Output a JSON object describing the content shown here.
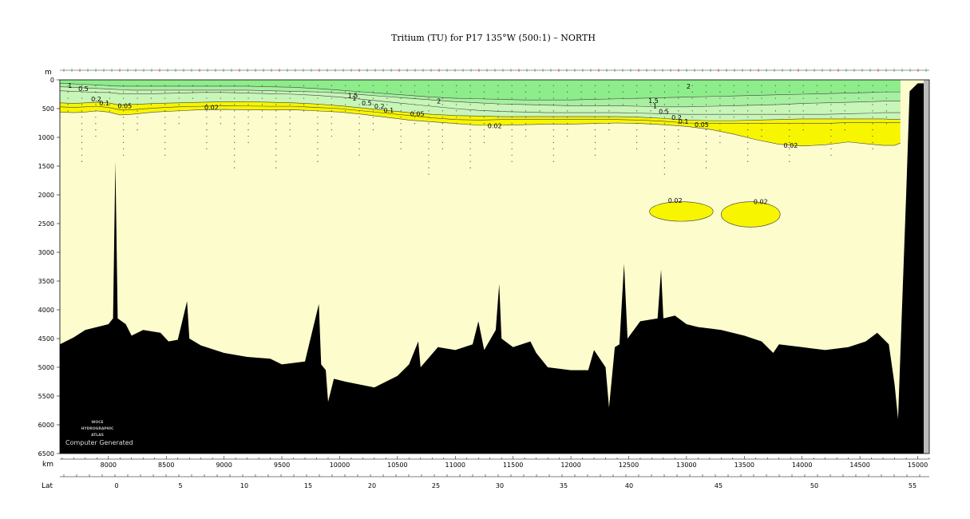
{
  "chart_data": {
    "type": "contour_section",
    "title": "Tritium (TU) for P17 135°W (500:1) – NORTH",
    "y_axis": {
      "label": "m",
      "range": [
        0,
        6500
      ],
      "ticks": [
        0,
        500,
        1000,
        1500,
        2000,
        2500,
        3000,
        3500,
        4000,
        4500,
        5000,
        5500,
        6000,
        6500
      ],
      "inverted": true
    },
    "x_axis": {
      "label": "km",
      "range": [
        7580,
        15100
      ],
      "ticks": [
        8000,
        8500,
        9000,
        9500,
        10000,
        10500,
        11000,
        11500,
        12000,
        12500,
        13000,
        13500,
        14000,
        14500,
        15000
      ]
    },
    "lat_axis": {
      "label": "Lat",
      "ticks": [
        "0",
        "5",
        "10",
        "15",
        "20",
        "25",
        "30",
        "35",
        "40",
        "45",
        "50",
        "55"
      ]
    },
    "contour_levels": [
      0.02,
      0.05,
      0.1,
      0.2,
      0.5,
      1,
      1.5,
      2
    ],
    "contour_labels": [
      {
        "text": "1",
        "x": 7650,
        "y": 100
      },
      {
        "text": "0.5",
        "x": 7740,
        "y": 150
      },
      {
        "text": "0.2",
        "x": 7850,
        "y": 330
      },
      {
        "text": "0.1",
        "x": 7920,
        "y": 400
      },
      {
        "text": "0.05",
        "x": 8080,
        "y": 450
      },
      {
        "text": "0.02",
        "x": 8830,
        "y": 480
      },
      {
        "text": "1.5",
        "x": 10070,
        "y": 270
      },
      {
        "text": "1",
        "x": 10110,
        "y": 320
      },
      {
        "text": "0.5",
        "x": 10190,
        "y": 400
      },
      {
        "text": "0.2",
        "x": 10300,
        "y": 460
      },
      {
        "text": "0.1",
        "x": 10380,
        "y": 530
      },
      {
        "text": "0.05",
        "x": 10610,
        "y": 590
      },
      {
        "text": "2",
        "x": 10840,
        "y": 370
      },
      {
        "text": "0.02",
        "x": 11280,
        "y": 800
      },
      {
        "text": "2",
        "x": 13000,
        "y": 110
      },
      {
        "text": "1.5",
        "x": 12670,
        "y": 360
      },
      {
        "text": "1",
        "x": 12710,
        "y": 450
      },
      {
        "text": "0.5",
        "x": 12760,
        "y": 550
      },
      {
        "text": "0.2",
        "x": 12870,
        "y": 650
      },
      {
        "text": "0.1",
        "x": 12930,
        "y": 720
      },
      {
        "text": "0.05",
        "x": 13070,
        "y": 780
      },
      {
        "text": "0.02",
        "x": 13840,
        "y": 1140
      },
      {
        "text": "0.02",
        "x": 12840,
        "y": 2100
      },
      {
        "text": "0.02",
        "x": 13580,
        "y": 2120
      }
    ],
    "colors": {
      "background": "#fdfccd",
      "band_002_005": "#f7f500",
      "band_05_1": "#c8f5b8",
      "band_1_15": "#a6f0a0",
      "band_above_15": "#8ded8a",
      "bottom": "#000000",
      "land": "#bbbbbb"
    },
    "bathymetry": [
      [
        7580,
        4600
      ],
      [
        7700,
        4480
      ],
      [
        7800,
        4350
      ],
      [
        7900,
        4300
      ],
      [
        8000,
        4250
      ],
      [
        8040,
        4150
      ],
      [
        8060,
        1420
      ],
      [
        8080,
        4150
      ],
      [
        8150,
        4250
      ],
      [
        8200,
        4450
      ],
      [
        8300,
        4350
      ],
      [
        8450,
        4400
      ],
      [
        8520,
        4550
      ],
      [
        8600,
        4520
      ],
      [
        8680,
        3850
      ],
      [
        8700,
        4500
      ],
      [
        8800,
        4620
      ],
      [
        9000,
        4750
      ],
      [
        9200,
        4820
      ],
      [
        9400,
        4850
      ],
      [
        9500,
        4950
      ],
      [
        9700,
        4900
      ],
      [
        9820,
        3900
      ],
      [
        9840,
        4950
      ],
      [
        9880,
        5050
      ],
      [
        9900,
        5600
      ],
      [
        9950,
        5200
      ],
      [
        10050,
        5250
      ],
      [
        10300,
        5350
      ],
      [
        10500,
        5150
      ],
      [
        10600,
        4950
      ],
      [
        10680,
        4550
      ],
      [
        10700,
        5000
      ],
      [
        10850,
        4650
      ],
      [
        11000,
        4700
      ],
      [
        11150,
        4600
      ],
      [
        11200,
        4200
      ],
      [
        11250,
        4700
      ],
      [
        11350,
        4350
      ],
      [
        11380,
        3550
      ],
      [
        11400,
        4500
      ],
      [
        11500,
        4650
      ],
      [
        11650,
        4550
      ],
      [
        11700,
        4750
      ],
      [
        11800,
        5000
      ],
      [
        12000,
        5050
      ],
      [
        12150,
        5050
      ],
      [
        12200,
        4700
      ],
      [
        12300,
        5000
      ],
      [
        12330,
        5700
      ],
      [
        12380,
        4650
      ],
      [
        12420,
        4600
      ],
      [
        12460,
        3200
      ],
      [
        12490,
        4500
      ],
      [
        12600,
        4200
      ],
      [
        12750,
        4150
      ],
      [
        12780,
        3300
      ],
      [
        12800,
        4150
      ],
      [
        12900,
        4100
      ],
      [
        13000,
        4250
      ],
      [
        13100,
        4300
      ],
      [
        13300,
        4350
      ],
      [
        13500,
        4450
      ],
      [
        13650,
        4550
      ],
      [
        13750,
        4750
      ],
      [
        13800,
        4600
      ],
      [
        14000,
        4650
      ],
      [
        14200,
        4700
      ],
      [
        14400,
        4650
      ],
      [
        14550,
        4550
      ],
      [
        14650,
        4400
      ],
      [
        14750,
        4600
      ],
      [
        14800,
        5300
      ],
      [
        14830,
        5900
      ],
      [
        14860,
        4200
      ],
      [
        14900,
        2000
      ],
      [
        14930,
        200
      ],
      [
        14970,
        120
      ],
      [
        15000,
        60
      ],
      [
        15080,
        60
      ]
    ]
  },
  "credits": {
    "logo_line1": "WOCE",
    "logo_line2": "HYDROGRAPHIC",
    "logo_line3": "ATLAS",
    "computer_generated": "Computer Generated"
  }
}
